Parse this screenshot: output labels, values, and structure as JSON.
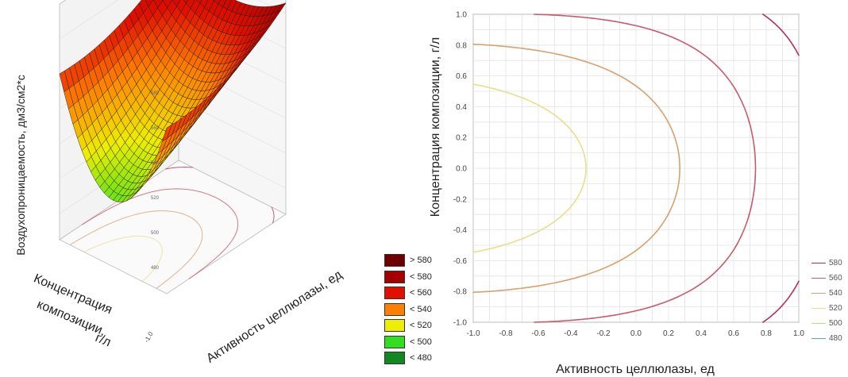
{
  "chart_data": [
    {
      "type": "surface",
      "zlabel": "Воздухопроницаемость, дм3/см2*с",
      "xlabel": "Активность целлюлазы, ед",
      "ylabel_lines": [
        "Концентрация",
        "композиции,",
        "г/л"
      ],
      "y_tick_end": "-1.0",
      "z_ticks": [
        "580",
        "560",
        "540",
        "520",
        "500",
        "480"
      ],
      "color_legend": [
        {
          "label": "> 580",
          "color": "#6e0000"
        },
        {
          "label": "< 580",
          "color": "#a50000"
        },
        {
          "label": "< 560",
          "color": "#e01000"
        },
        {
          "label": "< 540",
          "color": "#ff7f00"
        },
        {
          "label": "< 520",
          "color": "#eeee00"
        },
        {
          "label": "< 500",
          "color": "#33dd22"
        },
        {
          "label": "< 480",
          "color": "#118822"
        }
      ]
    },
    {
      "type": "contour",
      "xlabel": "Активность целлюлазы, ед",
      "ylabel": "Концентрация композиции, г/л",
      "xlim": [
        -1.0,
        1.0
      ],
      "ylim": [
        -1.0,
        1.0
      ],
      "x_ticks": [
        "-1.0",
        "-0.8",
        "-0.6",
        "-0.4",
        "-0.2",
        "0.0",
        "0.2",
        "0.4",
        "0.6",
        "0.8",
        "1.0"
      ],
      "y_ticks": [
        "1.0",
        "0.8",
        "0.6",
        "0.4",
        "0.2",
        "0.0",
        "-0.2",
        "-0.4",
        "-0.6",
        "-0.8",
        "-1.0"
      ],
      "grid": true,
      "levels": [
        {
          "label": "580",
          "value": 580,
          "color": "#b03060"
        },
        {
          "label": "560",
          "value": 560,
          "color": "#c85a6a"
        },
        {
          "label": "540",
          "value": 540,
          "color": "#d9a070"
        },
        {
          "label": "520",
          "value": 520,
          "color": "#e6e08a"
        },
        {
          "label": "500",
          "value": 500,
          "color": "#b8e07a"
        },
        {
          "label": "480",
          "value": 480,
          "color": "#5fae8a"
        }
      ]
    }
  ]
}
